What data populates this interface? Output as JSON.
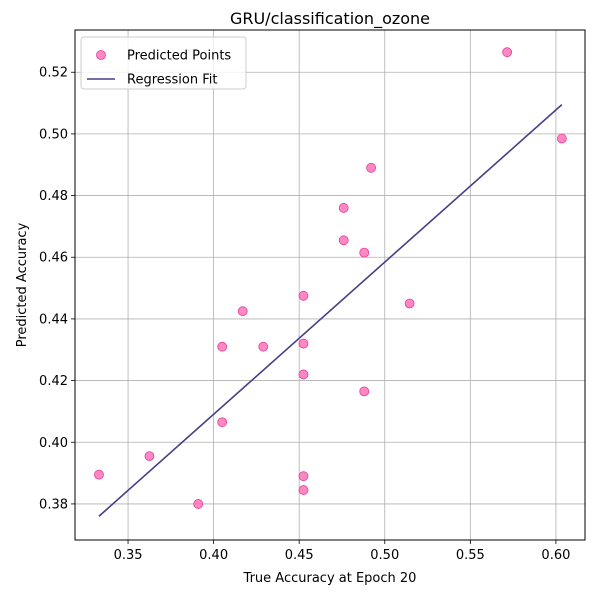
{
  "chart_data": {
    "type": "scatter",
    "title": "GRU/classification_ozone",
    "xlabel": "True Accuracy at Epoch 20",
    "ylabel": "Predicted Accuracy",
    "xlim": [
      0.319,
      0.617
    ],
    "ylim": [
      0.3683,
      0.5337
    ],
    "xticks": [
      0.35,
      0.4,
      0.45,
      0.5,
      0.55,
      0.6
    ],
    "xtick_labels": [
      "0.35",
      "0.40",
      "0.45",
      "0.50",
      "0.55",
      "0.60"
    ],
    "yticks": [
      0.38,
      0.4,
      0.42,
      0.44,
      0.46,
      0.48,
      0.5,
      0.52
    ],
    "ytick_labels": [
      "0.38",
      "0.40",
      "0.42",
      "0.44",
      "0.46",
      "0.48",
      "0.50",
      "0.52"
    ],
    "grid": true,
    "legend_position": "top-left",
    "series": [
      {
        "name": "Predicted Points",
        "kind": "scatter",
        "color": "#ff69b4",
        "x": [
          0.333,
          0.3625,
          0.391,
          0.405,
          0.405,
          0.417,
          0.429,
          0.4525,
          0.4525,
          0.4525,
          0.4525,
          0.4525,
          0.476,
          0.476,
          0.488,
          0.488,
          0.492,
          0.5145,
          0.5715,
          0.6035
        ],
        "y": [
          0.3895,
          0.3955,
          0.38,
          0.431,
          0.4065,
          0.4425,
          0.431,
          0.4475,
          0.432,
          0.422,
          0.389,
          0.3845,
          0.476,
          0.4655,
          0.4615,
          0.4165,
          0.489,
          0.445,
          0.5265,
          0.4985
        ]
      },
      {
        "name": "Regression Fit",
        "kind": "line",
        "color": "#483d8b",
        "x": [
          0.333,
          0.6035
        ],
        "y": [
          0.376,
          0.5095
        ]
      }
    ]
  }
}
